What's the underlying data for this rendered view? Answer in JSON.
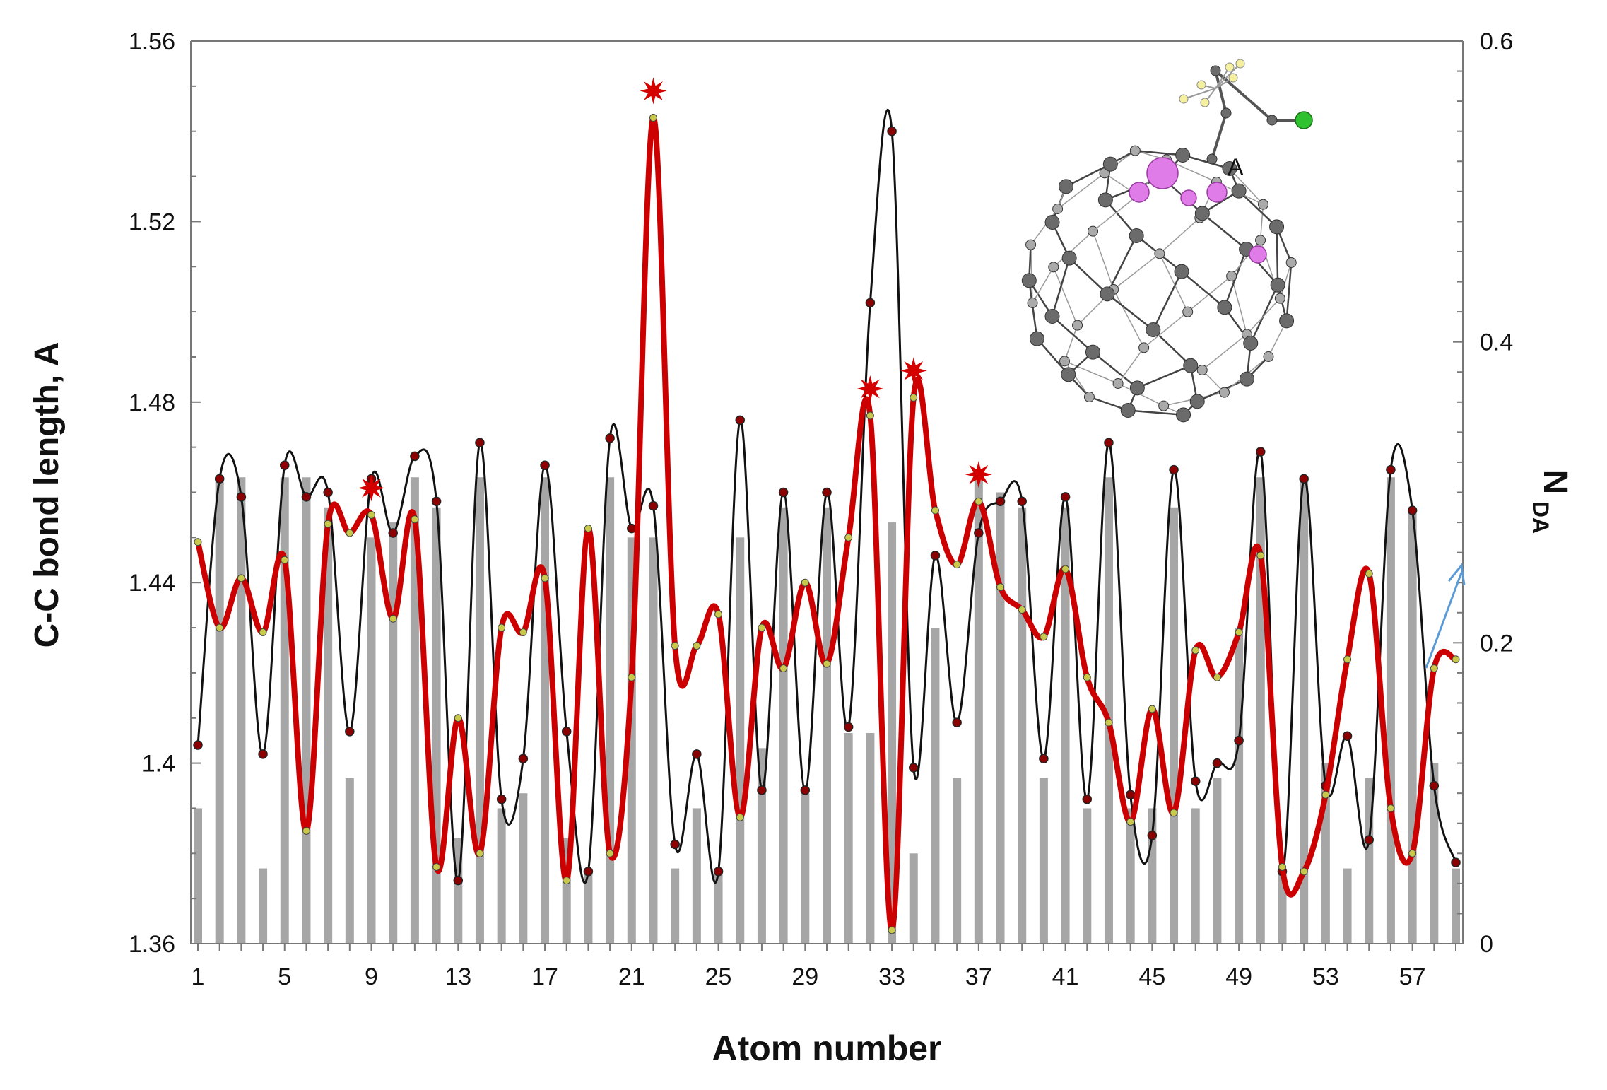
{
  "chart_data": {
    "type": "bar+line",
    "xlabel": "Atom number",
    "ylabel_left": "C-C bond length,  A",
    "ylabel_right_main": "N",
    "ylabel_right_sub": "DA",
    "ylim_left": [
      1.36,
      1.56
    ],
    "ylim_right": [
      0,
      0.6
    ],
    "left_ticks": [
      "1.36",
      "1.4",
      "1.44",
      "1.48",
      "1.52",
      "1.56"
    ],
    "right_ticks": [
      "0",
      "0.2",
      "0.4",
      "0.6"
    ],
    "x": [
      1,
      2,
      3,
      4,
      5,
      6,
      7,
      8,
      9,
      10,
      11,
      12,
      13,
      14,
      15,
      16,
      17,
      18,
      19,
      20,
      21,
      22,
      23,
      24,
      25,
      26,
      27,
      28,
      29,
      30,
      31,
      32,
      33,
      34,
      35,
      36,
      37,
      38,
      39,
      40,
      41,
      42,
      43,
      44,
      45,
      46,
      47,
      48,
      49,
      50,
      51,
      52,
      53,
      54,
      55,
      56,
      57,
      58,
      59
    ],
    "x_tick_labels": [
      "1",
      "5",
      "9",
      "13",
      "17",
      "21",
      "25",
      "29",
      "33",
      "37",
      "41",
      "45",
      "49",
      "53",
      "57"
    ],
    "series": [
      {
        "kind": "bar",
        "axis": "right",
        "color": "#a6a6a6",
        "values": [
          0.09,
          0.31,
          0.31,
          0.05,
          0.31,
          0.31,
          0.29,
          0.11,
          0.27,
          0.28,
          0.31,
          0.29,
          0.07,
          0.31,
          0.09,
          0.1,
          0.31,
          0.07,
          0.05,
          0.31,
          0.27,
          0.27,
          0.05,
          0.09,
          0.05,
          0.27,
          0.13,
          0.29,
          0.1,
          0.29,
          0.14,
          0.14,
          0.28,
          0.06,
          0.21,
          0.11,
          0.31,
          0.3,
          0.29,
          0.11,
          0.29,
          0.09,
          0.31,
          0.09,
          0.09,
          0.29,
          0.09,
          0.11,
          0.21,
          0.31,
          0.05,
          0.31,
          0.12,
          0.05,
          0.11,
          0.31,
          0.29,
          0.12,
          0.05
        ]
      },
      {
        "kind": "line",
        "axis": "left",
        "color": "#111111",
        "values": [
          1.404,
          1.463,
          1.459,
          1.402,
          1.466,
          1.459,
          1.46,
          1.407,
          1.463,
          1.451,
          1.468,
          1.458,
          1.374,
          1.471,
          1.392,
          1.401,
          1.466,
          1.407,
          1.376,
          1.472,
          1.452,
          1.457,
          1.382,
          1.402,
          1.376,
          1.476,
          1.394,
          1.46,
          1.394,
          1.46,
          1.408,
          1.502,
          1.54,
          1.399,
          1.446,
          1.409,
          1.451,
          1.458,
          1.458,
          1.401,
          1.459,
          1.392,
          1.471,
          1.393,
          1.384,
          1.465,
          1.396,
          1.4,
          1.405,
          1.469,
          1.376,
          1.463,
          1.395,
          1.406,
          1.383,
          1.465,
          1.456,
          1.395,
          1.378
        ]
      },
      {
        "kind": "line",
        "axis": "left",
        "color": "#cc0000",
        "values": [
          1.449,
          1.43,
          1.441,
          1.429,
          1.445,
          1.385,
          1.453,
          1.451,
          1.455,
          1.432,
          1.454,
          1.377,
          1.41,
          1.38,
          1.43,
          1.429,
          1.441,
          1.374,
          1.452,
          1.38,
          1.419,
          1.543,
          1.426,
          1.426,
          1.433,
          1.388,
          1.43,
          1.421,
          1.44,
          1.422,
          1.45,
          1.477,
          1.363,
          1.481,
          1.456,
          1.444,
          1.458,
          1.439,
          1.434,
          1.428,
          1.443,
          1.419,
          1.409,
          1.387,
          1.412,
          1.389,
          1.425,
          1.419,
          1.429,
          1.446,
          1.377,
          1.376,
          1.393,
          1.423,
          1.442,
          1.39,
          1.38,
          1.421,
          1.423
        ]
      }
    ],
    "star_markers_x": [
      9,
      22,
      32,
      34,
      37
    ],
    "inset_label": "A",
    "legend": "none",
    "grid": false
  }
}
